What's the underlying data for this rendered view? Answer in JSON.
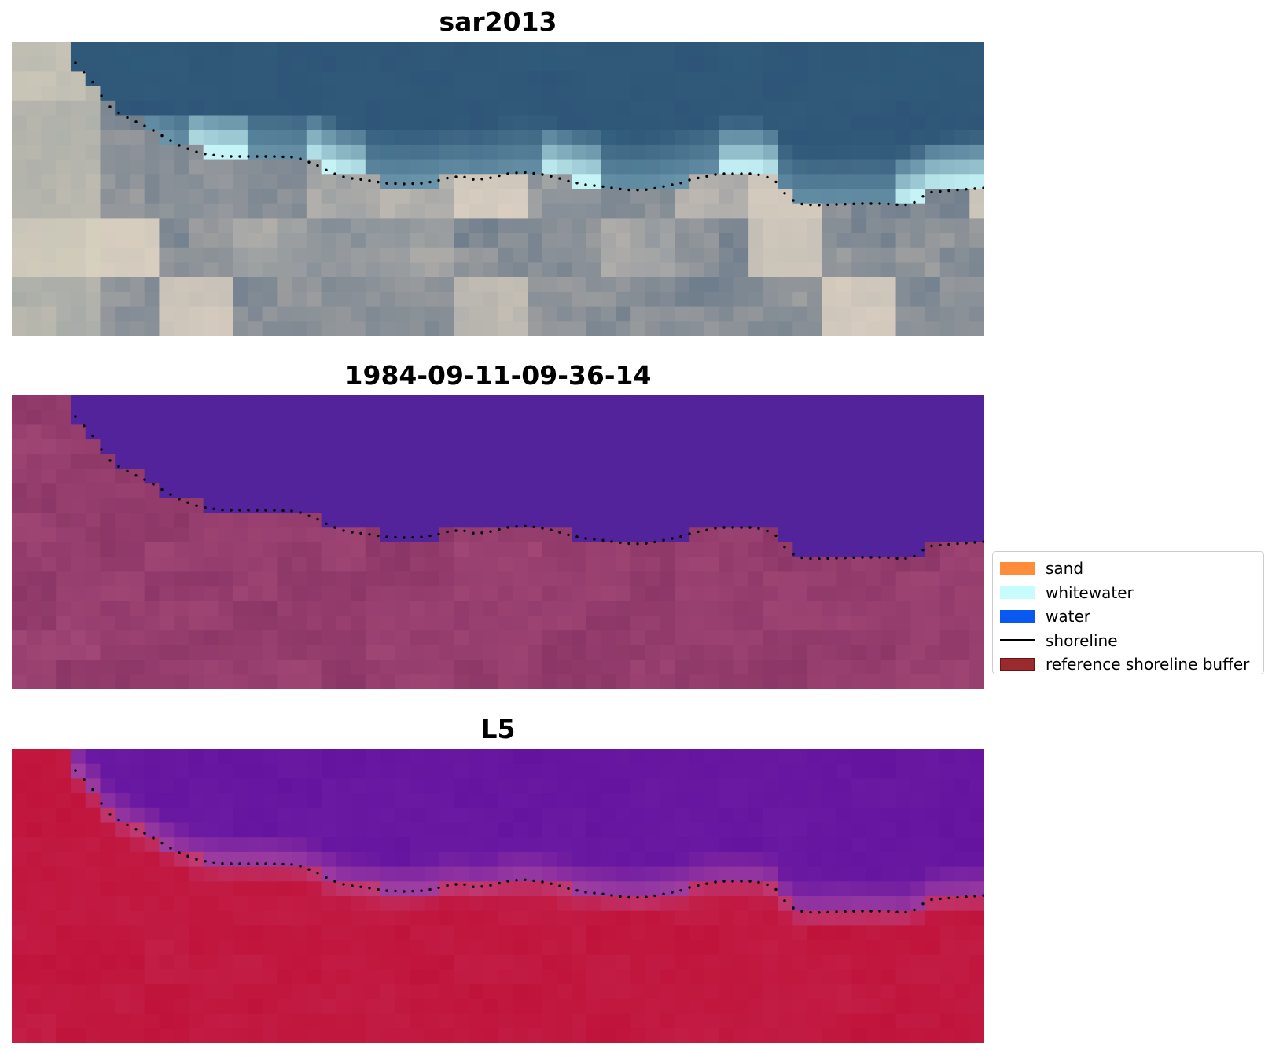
{
  "panels": [
    {
      "title": "sar2013",
      "kind": "rgb"
    },
    {
      "title": "1984-09-11-09-36-14",
      "kind": "classified"
    },
    {
      "title": "L5",
      "kind": "index"
    }
  ],
  "legend": {
    "items": [
      {
        "label": "sand",
        "color": "#ff8c3a",
        "kind": "patch"
      },
      {
        "label": "whitewater",
        "color": "#c8fcfc",
        "kind": "patch"
      },
      {
        "label": "water",
        "color": "#0a58f2",
        "kind": "patch"
      },
      {
        "label": "shoreline",
        "color": "#000000",
        "kind": "line"
      },
      {
        "label": "reference shoreline buffer",
        "color": "#9b2a2e",
        "edge": "#6a1416",
        "kind": "patch"
      }
    ]
  },
  "colors": {
    "rgb_water": "#2e5577",
    "rgb_whitewater": "#c6f4f6",
    "rgb_sand": "#efe0cc",
    "classified_water": "#52239b",
    "classified_land": "#8a3566",
    "index_water": "#64139f",
    "index_land": "#c0123a",
    "shoreline": "#000000"
  }
}
